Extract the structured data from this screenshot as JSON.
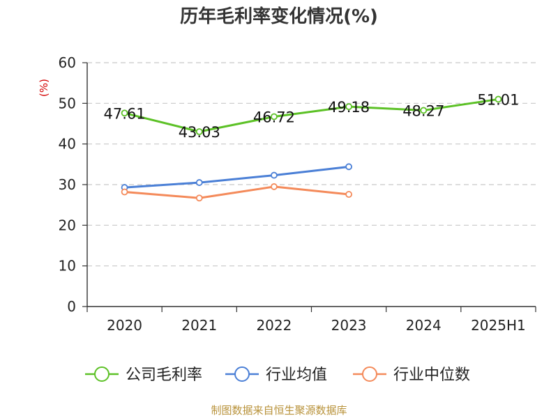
{
  "chart_data": {
    "type": "line",
    "title": "历年毛利率变化情况(%)",
    "ylabel": "(%)",
    "xlabel": "",
    "ylim": [
      0,
      60
    ],
    "yticks": [
      "0",
      "10",
      "20",
      "30",
      "40",
      "50",
      "60"
    ],
    "categories": [
      "2020",
      "2021",
      "2022",
      "2023",
      "2024",
      "2025H1"
    ],
    "grid": true,
    "legend_position": "bottom",
    "series": [
      {
        "name": "公司毛利率",
        "color": "#5cc126",
        "values": [
          47.61,
          43.03,
          46.72,
          49.18,
          48.27,
          51.01
        ],
        "labels": [
          "47.61",
          "43.03",
          "46.72",
          "49.18",
          "48.27",
          "51.01"
        ]
      },
      {
        "name": "行业均值",
        "color": "#4a7fd6",
        "values": [
          29.3,
          30.5,
          32.3,
          34.4,
          null,
          null
        ]
      },
      {
        "name": "行业中位数",
        "color": "#f48a5a",
        "values": [
          28.2,
          26.7,
          29.5,
          27.6,
          null,
          null
        ]
      }
    ]
  },
  "source": "制图数据来自恒生聚源数据库"
}
